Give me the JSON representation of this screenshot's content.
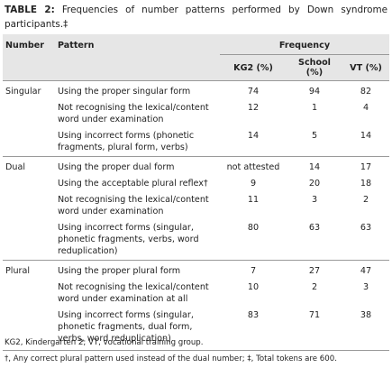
{
  "title": {
    "label": "TABLE 2:",
    "text": "Frequencies of number patterns performed by Down syndrome participants.‡"
  },
  "table": {
    "header": [
      "Number",
      "Pattern",
      "Frequency"
    ],
    "subheader": [
      "KG2 (%)",
      "School (%)",
      "VT (%)"
    ],
    "groups": [
      {
        "number": "Singular",
        "rows": [
          [
            "Using the proper singular form",
            74,
            94,
            82
          ],
          [
            "Not recognising the lexical/content word under examination",
            12,
            1,
            4
          ],
          [
            "Using incorrect forms (phonetic fragments, plural form, verbs)",
            14,
            5,
            14
          ]
        ]
      },
      {
        "number": "Dual",
        "rows": [
          [
            "Using the proper dual form",
            "not attested",
            14,
            17
          ],
          [
            "Using the acceptable plural reflex†",
            9,
            20,
            18
          ],
          [
            "Not recognising the lexical/content word under examination",
            11,
            3,
            2
          ],
          [
            "Using incorrect forms (singular, phonetic fragments, verbs, word reduplication)",
            80,
            63,
            63
          ]
        ]
      },
      {
        "number": "Plural",
        "rows": [
          [
            "Using the proper plural form",
            7,
            27,
            47
          ],
          [
            "Not recognising the lexical/content word under examination at all",
            10,
            2,
            3
          ],
          [
            "Using incorrect forms (singular, phonetic fragments, dual form, verbs, word reduplication)",
            83,
            71,
            38
          ]
        ]
      }
    ]
  },
  "footnotes": [
    "KG2, Kindergarten 2; VT, vocational training group.",
    "†, Any correct plural pattern used instead of the dual number; ‡, Total tokens are 600."
  ]
}
